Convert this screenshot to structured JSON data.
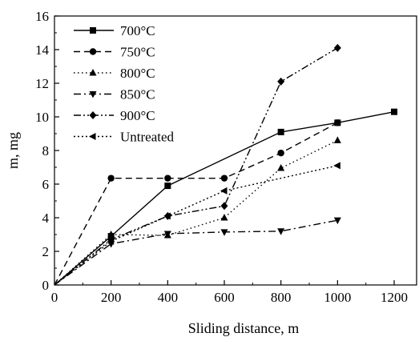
{
  "chart_data": {
    "type": "line",
    "title": "",
    "xlabel": "Sliding distance, m",
    "ylabel": "m, mg",
    "xlim": [
      0,
      1300
    ],
    "ylim": [
      0,
      16
    ],
    "xticks": [
      0,
      200,
      400,
      600,
      800,
      1000,
      1200
    ],
    "yticks": [
      0,
      2,
      4,
      6,
      8,
      10,
      12,
      14,
      16
    ],
    "grid": false,
    "legend_position": "top-left",
    "series": [
      {
        "name": "700°C",
        "marker": "square",
        "dash": "solid",
        "color": "#000000",
        "x": [
          0,
          200,
          400,
          800,
          1000,
          1200
        ],
        "y": [
          0,
          2.9,
          5.9,
          9.1,
          9.65,
          10.3
        ]
      },
      {
        "name": "750°C",
        "marker": "circle",
        "dash": "dashed",
        "color": "#000000",
        "x": [
          0,
          200,
          400,
          600,
          800,
          1000
        ],
        "y": [
          0,
          6.35,
          6.35,
          6.35,
          7.85,
          9.65
        ]
      },
      {
        "name": "800°C",
        "marker": "triangle-up",
        "dash": "dotted",
        "color": "#000000",
        "x": [
          0,
          200,
          400,
          600,
          800,
          1000
        ],
        "y": [
          0,
          3.0,
          2.95,
          4.0,
          6.95,
          8.6
        ]
      },
      {
        "name": "850°C",
        "marker": "triangle-down",
        "dash": "dashdot",
        "color": "#000000",
        "x": [
          0,
          200,
          400,
          600,
          800,
          1000
        ],
        "y": [
          0,
          2.45,
          3.05,
          3.15,
          3.2,
          3.85
        ]
      },
      {
        "name": "900°C",
        "marker": "diamond",
        "dash": "dashdotdot",
        "color": "#000000",
        "x": [
          0,
          200,
          400,
          600,
          800,
          1000
        ],
        "y": [
          0,
          2.7,
          4.1,
          4.7,
          12.1,
          14.1
        ]
      },
      {
        "name": "Untreated",
        "marker": "triangle-left",
        "dash": "shortdot",
        "color": "#000000",
        "x": [
          0,
          200,
          400,
          600,
          1000
        ],
        "y": [
          0,
          2.6,
          4.1,
          5.6,
          7.1
        ]
      }
    ]
  }
}
